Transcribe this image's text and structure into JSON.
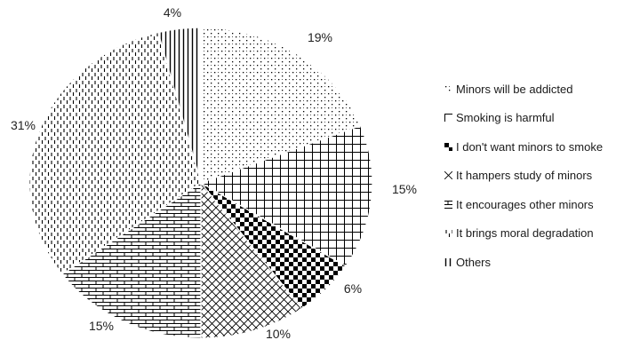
{
  "chart_data": {
    "type": "pie",
    "title": "",
    "slices": [
      {
        "label": "Minors will be addicted",
        "value": 19,
        "display": "19%",
        "pattern": "dots-fine"
      },
      {
        "label": "Smoking is harmful",
        "value": 15,
        "display": "15%",
        "pattern": "grid"
      },
      {
        "label": "I don't want minors to smoke",
        "value": 6,
        "display": "6%",
        "pattern": "checker"
      },
      {
        "label": "It hampers study of minors",
        "value": 10,
        "display": "10%",
        "pattern": "diagonal-cross"
      },
      {
        "label": "It encourages other minors",
        "value": 15,
        "display": "15%",
        "pattern": "brick"
      },
      {
        "label": "It brings moral degradation",
        "value": 31,
        "display": "31%",
        "pattern": "dashed-vertical"
      },
      {
        "label": "Others",
        "value": 4,
        "display": "4%",
        "pattern": "vertical-lines"
      }
    ],
    "start_angle_deg": 0,
    "direction": "clockwise",
    "legend_position": "right"
  }
}
